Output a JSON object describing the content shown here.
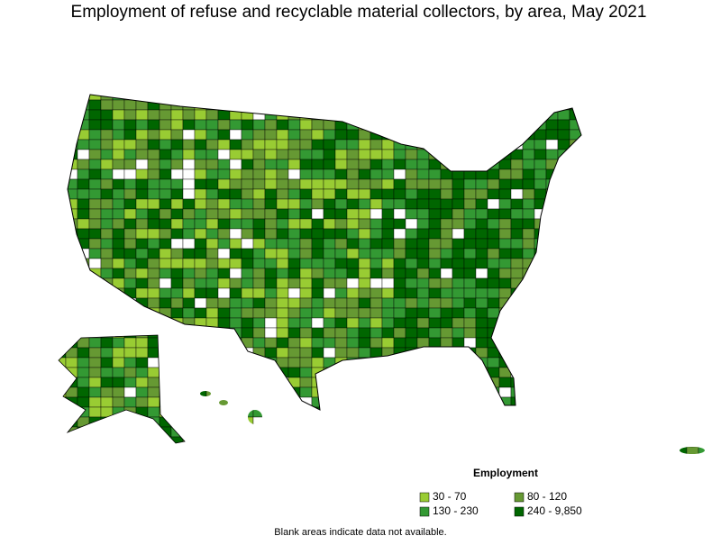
{
  "title": "Employment of refuse and recyclable material collectors, by area, May 2021",
  "legend": {
    "title": "Employment",
    "items": [
      {
        "label": "30 - 70",
        "color": "#99cc33"
      },
      {
        "label": "80 - 120",
        "color": "#669933"
      },
      {
        "label": "130 - 230",
        "color": "#339933"
      },
      {
        "label": "240 - 9,850",
        "color": "#006600"
      }
    ]
  },
  "note": "Blank areas indicate data not available."
}
